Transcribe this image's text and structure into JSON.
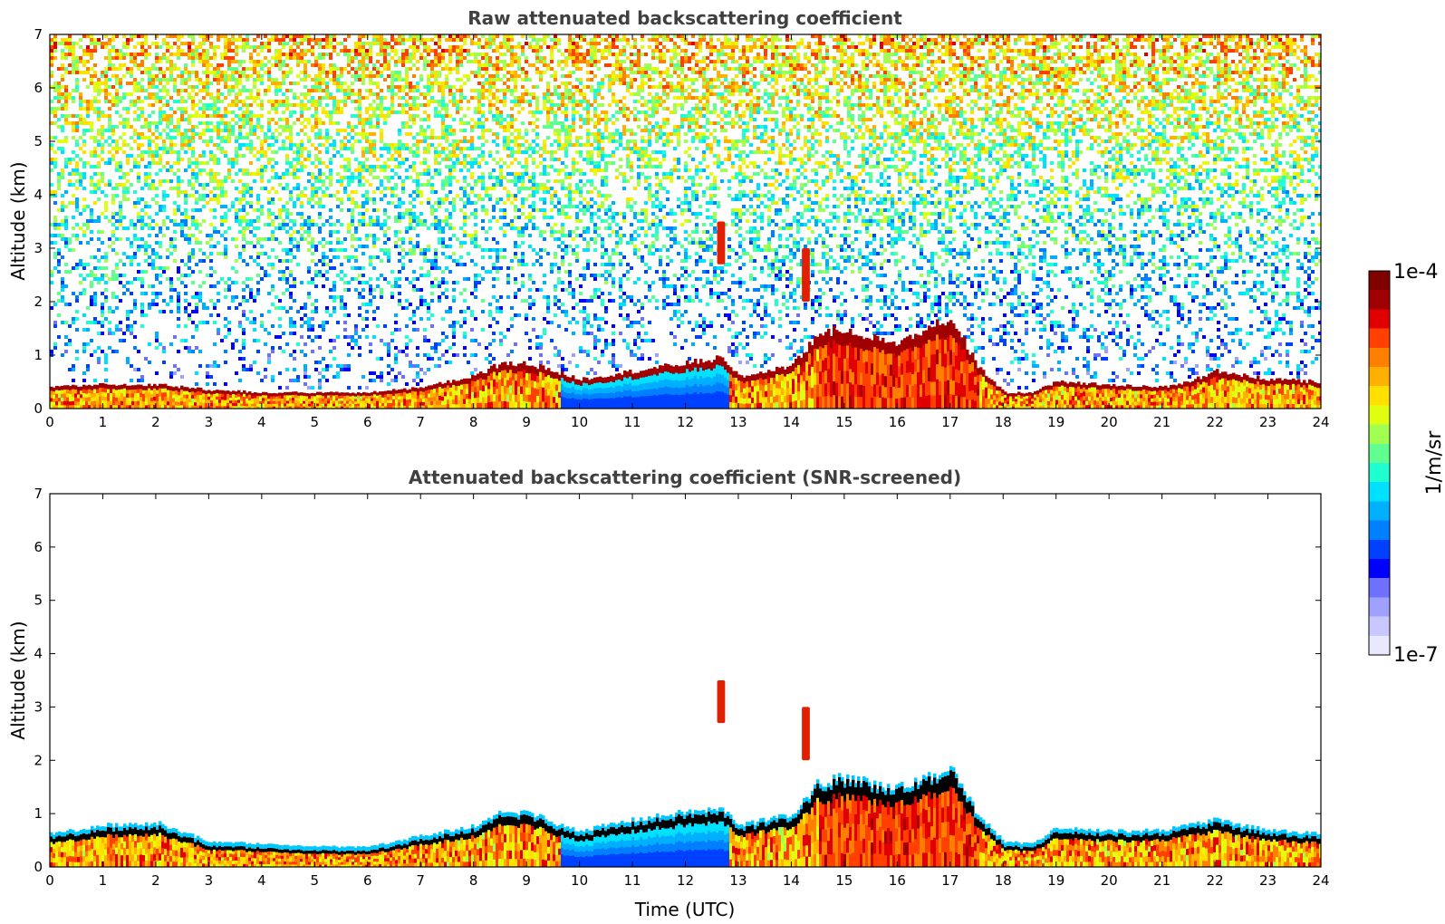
{
  "chart_data": [
    {
      "type": "heatmap",
      "title": "Raw attenuated backscattering coefficient",
      "xlabel": "",
      "ylabel": "Altitude (km)",
      "xlim": [
        0,
        24
      ],
      "ylim": [
        0,
        7
      ],
      "xticks": [
        0,
        1,
        2,
        3,
        4,
        5,
        6,
        7,
        8,
        9,
        10,
        11,
        12,
        13,
        14,
        15,
        16,
        17,
        18,
        19,
        20,
        21,
        22,
        23,
        24
      ],
      "yticks": [
        0,
        1,
        2,
        3,
        4,
        5,
        6,
        7
      ],
      "scale": "log",
      "colormap": "jet",
      "noise": "speckled background noise increasing with altitude",
      "layer_top_km": {
        "time": [
          0,
          1,
          2,
          3,
          4,
          5,
          6,
          7,
          8,
          8.5,
          9,
          9.5,
          10,
          11,
          12,
          12.7,
          13,
          14,
          14.5,
          15,
          16,
          17,
          17.5,
          18,
          18.5,
          19,
          20,
          21,
          21.5,
          22,
          23,
          24
        ],
        "value": [
          0.4,
          0.45,
          0.45,
          0.35,
          0.3,
          0.3,
          0.3,
          0.4,
          0.6,
          0.85,
          0.85,
          0.7,
          0.55,
          0.7,
          0.85,
          0.95,
          0.6,
          0.8,
          1.4,
          1.5,
          1.2,
          1.7,
          0.8,
          0.3,
          0.3,
          0.5,
          0.45,
          0.4,
          0.5,
          0.7,
          0.55,
          0.5
        ]
      },
      "features": [
        {
          "name": "elevated layer",
          "time": [
            12.6,
            12.75
          ],
          "alt_km": [
            2.7,
            3.5
          ]
        },
        {
          "name": "elevated layer",
          "time": [
            14.2,
            14.35
          ],
          "alt_km": [
            2.0,
            3.0
          ]
        }
      ]
    },
    {
      "type": "heatmap",
      "title": "Attenuated backscattering coefficient (SNR-screened)",
      "xlabel": "Time (UTC)",
      "ylabel": "Altitude (km)",
      "xlim": [
        0,
        24
      ],
      "ylim": [
        0,
        7
      ],
      "xticks": [
        0,
        1,
        2,
        3,
        4,
        5,
        6,
        7,
        8,
        9,
        10,
        11,
        12,
        13,
        14,
        15,
        16,
        17,
        18,
        19,
        20,
        21,
        22,
        23,
        24
      ],
      "yticks": [
        0,
        1,
        2,
        3,
        4,
        5,
        6,
        7
      ],
      "scale": "log",
      "colormap": "jet",
      "layer_top_km": {
        "time": [
          0,
          1,
          2,
          3,
          4,
          5,
          6,
          7,
          8,
          8.5,
          9,
          9.5,
          10,
          11,
          12,
          12.7,
          13,
          14,
          14.5,
          15,
          16,
          17,
          17.5,
          18,
          18.5,
          19,
          20,
          21,
          21.5,
          22,
          23,
          24
        ],
        "value": [
          0.55,
          0.7,
          0.75,
          0.4,
          0.35,
          0.3,
          0.3,
          0.5,
          0.7,
          0.95,
          0.95,
          0.75,
          0.6,
          0.8,
          0.95,
          1.0,
          0.7,
          0.9,
          1.5,
          1.6,
          1.4,
          1.75,
          0.9,
          0.4,
          0.35,
          0.65,
          0.6,
          0.6,
          0.7,
          0.8,
          0.6,
          0.55
        ]
      },
      "features": [
        {
          "name": "elevated layer",
          "time": [
            12.6,
            12.75
          ],
          "alt_km": [
            2.7,
            3.5
          ]
        },
        {
          "name": "elevated layer",
          "time": [
            14.2,
            14.35
          ],
          "alt_km": [
            2.0,
            3.0
          ]
        }
      ]
    }
  ],
  "colorbar": {
    "max_label": "1e-4",
    "min_label": "1e-7",
    "unit_label": "1/m/sr",
    "vmin": 1e-07,
    "vmax": 0.0001,
    "colors": [
      "#e8e8ff",
      "#c8c8ff",
      "#a0a0ff",
      "#7070ff",
      "#0000ff",
      "#0040ff",
      "#0080ff",
      "#00b0ff",
      "#00e0ff",
      "#20ffd0",
      "#60ff90",
      "#a0ff50",
      "#e0ff10",
      "#ffe000",
      "#ffb000",
      "#ff8000",
      "#ff4000",
      "#e00000",
      "#a00000",
      "#800000"
    ]
  }
}
